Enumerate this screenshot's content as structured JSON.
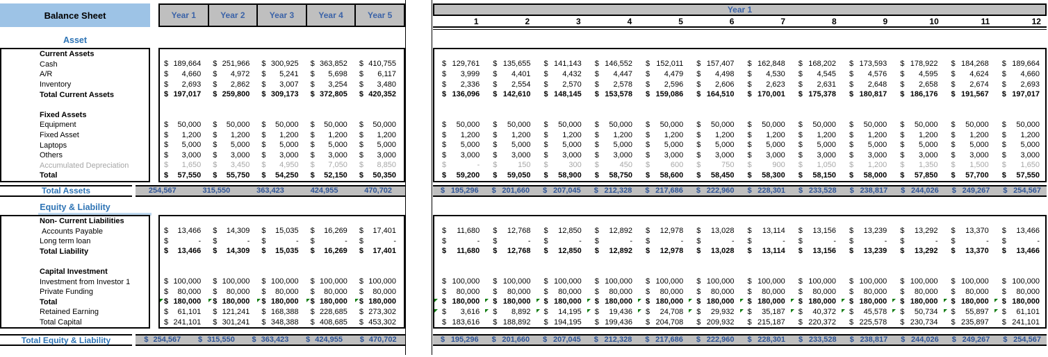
{
  "sheet": {
    "title": "Balance Sheet",
    "currency": "$",
    "colors": {
      "title_bg": "#9DC3E6",
      "header_bg": "#BFBFBF",
      "header_text": "#3B63A8",
      "section_heading_text": "#2E74B5",
      "total_value_text": "#2F5597",
      "muted_text": "#A6A6A6",
      "heading_underline": "#BDD7EE",
      "formula_marker": "#107C10"
    },
    "annual": {
      "columns": [
        "Year 1",
        "Year 2",
        "Year 3",
        "Year 4",
        "Year 5"
      ]
    },
    "monthly": {
      "year_label": "Year 1",
      "columns": [
        "1",
        "2",
        "3",
        "4",
        "5",
        "6",
        "7",
        "8",
        "9",
        "10",
        "11",
        "12"
      ]
    },
    "blocks": [
      {
        "type": "spacer",
        "h": 6
      },
      {
        "type": "heading",
        "label": "Asset",
        "underline": false
      },
      {
        "type": "box",
        "rows": [
          {
            "label": "Current Assets",
            "bold": true
          },
          {
            "label": "Cash",
            "annual": [
              "189,664",
              "251,966",
              "300,925",
              "363,852",
              "410,755"
            ],
            "monthly": [
              "129,761",
              "135,655",
              "141,143",
              "146,552",
              "152,011",
              "157,407",
              "162,848",
              "168,202",
              "173,593",
              "178,922",
              "184,268",
              "189,664"
            ]
          },
          {
            "label": "A/R",
            "annual": [
              "4,660",
              "4,972",
              "5,241",
              "5,698",
              "6,117"
            ],
            "monthly": [
              "3,999",
              "4,401",
              "4,432",
              "4,447",
              "4,479",
              "4,498",
              "4,530",
              "4,545",
              "4,576",
              "4,595",
              "4,624",
              "4,660"
            ]
          },
          {
            "label": "Inventory",
            "annual": [
              "2,693",
              "2,862",
              "3,007",
              "3,254",
              "3,480"
            ],
            "monthly": [
              "2,336",
              "2,554",
              "2,570",
              "2,578",
              "2,596",
              "2,606",
              "2,623",
              "2,631",
              "2,648",
              "2,658",
              "2,674",
              "2,693"
            ]
          },
          {
            "label": "Total Current Assets",
            "bold": true,
            "annual": [
              "197,017",
              "259,800",
              "309,173",
              "372,805",
              "420,352"
            ],
            "monthly": [
              "136,096",
              "142,610",
              "148,145",
              "153,578",
              "159,086",
              "164,510",
              "170,001",
              "175,378",
              "180,817",
              "186,176",
              "191,567",
              "197,017"
            ]
          },
          {
            "label": "",
            "spacer": true
          },
          {
            "label": "Fixed Assets",
            "bold": true
          },
          {
            "label": "Equipment",
            "annual": [
              "50,000",
              "50,000",
              "50,000",
              "50,000",
              "50,000"
            ],
            "monthly": [
              "50,000",
              "50,000",
              "50,000",
              "50,000",
              "50,000",
              "50,000",
              "50,000",
              "50,000",
              "50,000",
              "50,000",
              "50,000",
              "50,000"
            ]
          },
          {
            "label": "Fixed Asset",
            "annual": [
              "1,200",
              "1,200",
              "1,200",
              "1,200",
              "1,200"
            ],
            "monthly": [
              "1,200",
              "1,200",
              "1,200",
              "1,200",
              "1,200",
              "1,200",
              "1,200",
              "1,200",
              "1,200",
              "1,200",
              "1,200",
              "1,200"
            ]
          },
          {
            "label": "Laptops",
            "annual": [
              "5,000",
              "5,000",
              "5,000",
              "5,000",
              "5,000"
            ],
            "monthly": [
              "5,000",
              "5,000",
              "5,000",
              "5,000",
              "5,000",
              "5,000",
              "5,000",
              "5,000",
              "5,000",
              "5,000",
              "5,000",
              "5,000"
            ]
          },
          {
            "label": "Others",
            "annual": [
              "3,000",
              "3,000",
              "3,000",
              "3,000",
              "3,000"
            ],
            "monthly": [
              "3,000",
              "3,000",
              "3,000",
              "3,000",
              "3,000",
              "3,000",
              "3,000",
              "3,000",
              "3,000",
              "3,000",
              "3,000",
              "3,000"
            ]
          },
          {
            "label": "Accumulated Depreciation",
            "muted": true,
            "annual": [
              "1,650",
              "3,450",
              "4,950",
              "7,050",
              "8,850"
            ],
            "monthly": [
              "-",
              "150",
              "300",
              "450",
              "600",
              "750",
              "900",
              "1,050",
              "1,200",
              "1,350",
              "1,500",
              "1,650"
            ]
          },
          {
            "label": "Total",
            "bold": true,
            "annual": [
              "57,550",
              "55,750",
              "54,250",
              "52,150",
              "50,350"
            ],
            "monthly": [
              "59,200",
              "59,050",
              "58,900",
              "58,750",
              "58,600",
              "58,450",
              "58,300",
              "58,150",
              "58,000",
              "57,850",
              "57,700",
              "57,550"
            ]
          }
        ]
      },
      {
        "type": "spacer",
        "h": 4
      },
      {
        "type": "total",
        "label": "Total Assets",
        "annual_dollar": false,
        "monthly_dollar": true,
        "annual": [
          "254,567",
          "315,550",
          "363,423",
          "424,955",
          "470,702"
        ],
        "monthly": [
          "195,296",
          "201,660",
          "207,045",
          "212,328",
          "217,686",
          "222,960",
          "228,301",
          "233,528",
          "238,817",
          "244,026",
          "249,267",
          "254,567"
        ]
      },
      {
        "type": "spacer",
        "h": 6
      },
      {
        "type": "heading",
        "label": "Equity & Liability",
        "underline": true
      },
      {
        "type": "box",
        "rows": [
          {
            "label": "Non- Current Liabilities",
            "bold": true
          },
          {
            "label": "Accounts Payable",
            "indent": true,
            "annual": [
              "13,466",
              "14,309",
              "15,035",
              "16,269",
              "17,401"
            ],
            "monthly": [
              "11,680",
              "12,768",
              "12,850",
              "12,892",
              "12,978",
              "13,028",
              "13,114",
              "13,156",
              "13,239",
              "13,292",
              "13,370",
              "13,466"
            ]
          },
          {
            "label": "Long term loan",
            "annual": [
              "-",
              "-",
              "-",
              "-",
              "-"
            ],
            "monthly": [
              "-",
              "-",
              "-",
              "-",
              "-",
              "-",
              "-",
              "-",
              "-",
              "-",
              "-",
              "-"
            ]
          },
          {
            "label": "Total Liability",
            "bold": true,
            "annual": [
              "13,466",
              "14,309",
              "15,035",
              "16,269",
              "17,401"
            ],
            "monthly": [
              "11,680",
              "12,768",
              "12,850",
              "12,892",
              "12,978",
              "13,028",
              "13,114",
              "13,156",
              "13,239",
              "13,292",
              "13,370",
              "13,466"
            ]
          },
          {
            "label": "",
            "spacer": true
          },
          {
            "label": "Capital Investment",
            "bold": true
          },
          {
            "label": "Investment from Investor 1",
            "annual": [
              "100,000",
              "100,000",
              "100,000",
              "100,000",
              "100,000"
            ],
            "monthly": [
              "100,000",
              "100,000",
              "100,000",
              "100,000",
              "100,000",
              "100,000",
              "100,000",
              "100,000",
              "100,000",
              "100,000",
              "100,000",
              "100,000"
            ]
          },
          {
            "label": "Private Funding",
            "annual": [
              "80,000",
              "80,000",
              "80,000",
              "80,000",
              "80,000"
            ],
            "monthly": [
              "80,000",
              "80,000",
              "80,000",
              "80,000",
              "80,000",
              "80,000",
              "80,000",
              "80,000",
              "80,000",
              "80,000",
              "80,000",
              "80,000"
            ]
          },
          {
            "label": "Total",
            "bold": true,
            "marker_annual": true,
            "marker_monthly": true,
            "annual": [
              "180,000",
              "180,000",
              "180,000",
              "180,000",
              "180,000"
            ],
            "monthly": [
              "180,000",
              "180,000",
              "180,000",
              "180,000",
              "180,000",
              "180,000",
              "180,000",
              "180,000",
              "180,000",
              "180,000",
              "180,000",
              "180,000"
            ]
          },
          {
            "label": "Retained Earning",
            "marker_monthly": true,
            "annual": [
              "61,101",
              "121,241",
              "168,388",
              "228,685",
              "273,302"
            ],
            "monthly": [
              "3,616",
              "8,892",
              "14,195",
              "19,436",
              "24,708",
              "29,932",
              "35,187",
              "40,372",
              "45,578",
              "50,734",
              "55,897",
              "61,101"
            ]
          },
          {
            "label": "Total Capital",
            "annual": [
              "241,101",
              "301,241",
              "348,388",
              "408,685",
              "453,302"
            ],
            "monthly": [
              "183,616",
              "188,892",
              "194,195",
              "199,436",
              "204,708",
              "209,932",
              "215,187",
              "220,372",
              "225,578",
              "230,734",
              "235,897",
              "241,101"
            ]
          }
        ]
      },
      {
        "type": "spacer",
        "h": 8
      },
      {
        "type": "total",
        "label": "Total Equity & Liability",
        "annual_dollar": true,
        "monthly_dollar": true,
        "annual": [
          "254,567",
          "315,550",
          "363,423",
          "424,955",
          "470,702"
        ],
        "monthly": [
          "195,296",
          "201,660",
          "207,045",
          "212,328",
          "217,686",
          "222,960",
          "228,301",
          "233,528",
          "238,817",
          "244,026",
          "249,267",
          "254,567"
        ]
      }
    ]
  }
}
